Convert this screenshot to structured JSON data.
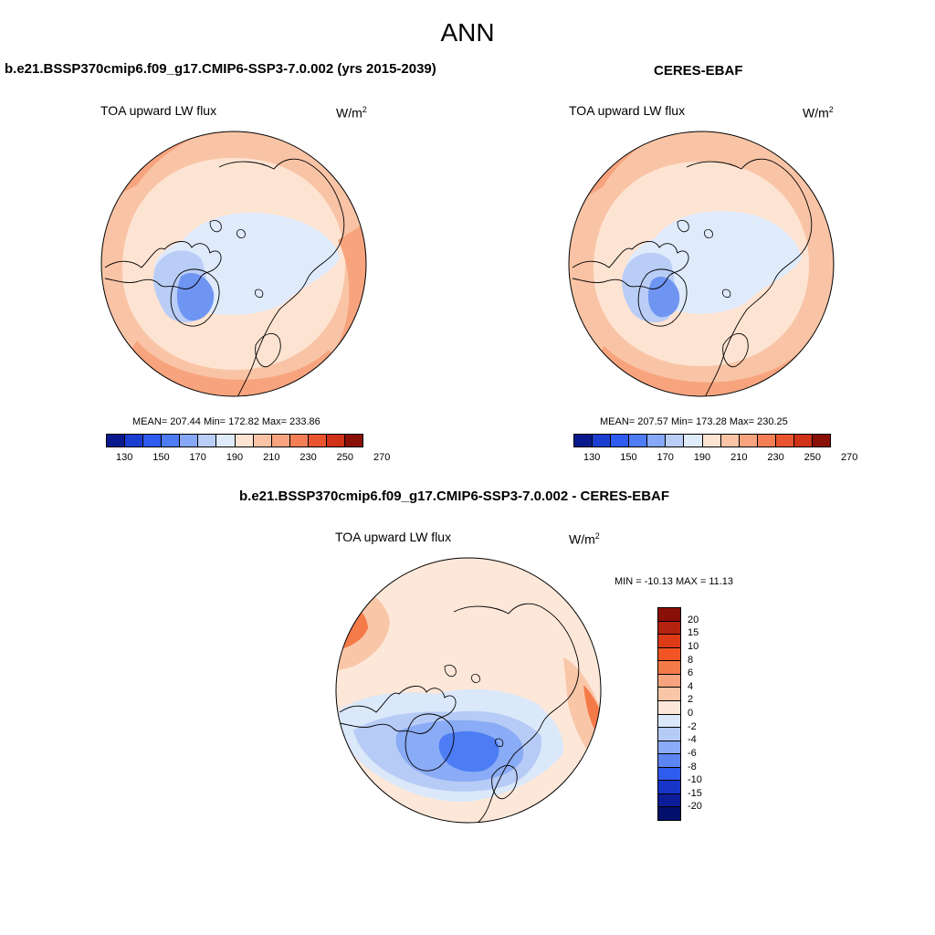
{
  "figure": {
    "title": "ANN"
  },
  "panels": {
    "model": {
      "title": "b.e21.BSSP370cmip6.f09_g17.CMIP6-SSP3-7.0.002 (yrs 2015-2039)",
      "var_label": "TOA upward LW flux",
      "unit_base": "W/m",
      "unit_exp": "2",
      "stats": "MEAN= 207.44  Min= 172.82  Max= 233.86",
      "mean": 207.44,
      "min": 172.82,
      "max": 233.86
    },
    "obs": {
      "title": "CERES-EBAF",
      "var_label": "TOA upward LW flux",
      "unit_base": "W/m",
      "unit_exp": "2",
      "stats": "MEAN= 207.57  Min= 173.28  Max= 230.25",
      "mean": 207.57,
      "min": 173.28,
      "max": 230.25
    },
    "diff": {
      "title": "b.e21.BSSP370cmip6.f09_g17.CMIP6-SSP3-7.0.002 - CERES-EBAF",
      "var_label": "TOA upward LW flux",
      "unit_base": "W/m",
      "unit_exp": "2",
      "stats": "MIN = -10.13 MAX =  11.13",
      "min": -10.13,
      "max": 11.13
    }
  },
  "colorbars": {
    "absolute": {
      "labels": [
        "130",
        "150",
        "170",
        "190",
        "210",
        "230",
        "250",
        "270"
      ],
      "colors": [
        "#0a1a8c",
        "#1a3fd0",
        "#2f5bef",
        "#4d7cf5",
        "#86a8f7",
        "#b9cdf7",
        "#dfeafb",
        "#fde4d2",
        "#f9c4a6",
        "#f7a47e",
        "#f47f56",
        "#ea5530",
        "#cf3216",
        "#8a0f06"
      ]
    },
    "difference": {
      "labels": [
        "20",
        "15",
        "10",
        "8",
        "6",
        "4",
        "2",
        "0",
        "-2",
        "-4",
        "-6",
        "-8",
        "-10",
        "-15",
        "-20"
      ],
      "colors": [
        "#8a0f06",
        "#b52210",
        "#dd3a18",
        "#f25424",
        "#f47a48",
        "#f7a47e",
        "#f9c6a8",
        "#fde7d8",
        "#dbe8fa",
        "#b6cbf6",
        "#8aabf5",
        "#5d85f1",
        "#2f5bef",
        "#1736c8",
        "#0d1d9a",
        "#03106b"
      ]
    }
  },
  "map_colors": {
    "ocean_warm_1": "#fde4d2",
    "ocean_warm_2": "#f9c4a6",
    "ocean_warm_3": "#f7a47e",
    "ocean_warm_4": "#f47f56",
    "arctic_1": "#dfeafb",
    "arctic_2": "#b9cdf7",
    "greenland": "#6f95f2",
    "diff_neg_1": "#dbe8fa",
    "diff_neg_2": "#b6cbf6",
    "diff_neg_3": "#8aabf5",
    "diff_neg_4": "#4d7cf5",
    "diff_pos_1": "#fde7d8",
    "diff_pos_2": "#f9c6a8",
    "diff_pos_3": "#f47a48",
    "coastline": "#000000"
  }
}
